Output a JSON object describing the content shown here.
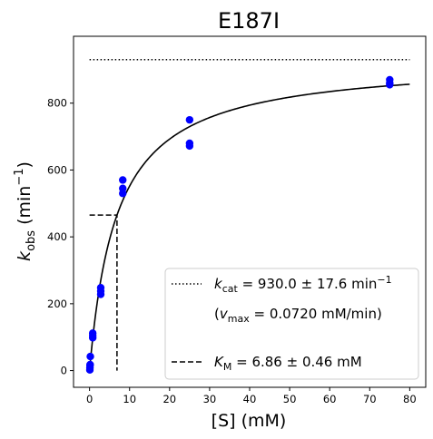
{
  "chart_data": {
    "type": "scatter",
    "title": "E187I",
    "xlabel": "[S] (mM)",
    "ylabel": "k_obs (min⁻¹)",
    "xlim": [
      -4,
      84
    ],
    "ylim": [
      -50,
      1000
    ],
    "xticks": [
      0,
      10,
      20,
      30,
      40,
      50,
      60,
      70,
      80
    ],
    "yticks": [
      0,
      200,
      400,
      600,
      800
    ],
    "grid": false,
    "legend_position": "lower-right",
    "series": [
      {
        "kind": "points",
        "color": "#0000ff",
        "points": [
          [
            0.08,
            2
          ],
          [
            0.1,
            8
          ],
          [
            0.12,
            15
          ],
          [
            0.15,
            18
          ],
          [
            0.2,
            42
          ],
          [
            0.8,
            98
          ],
          [
            0.8,
            105
          ],
          [
            0.8,
            112
          ],
          [
            2.8,
            228
          ],
          [
            2.8,
            238
          ],
          [
            2.8,
            248
          ],
          [
            8.3,
            530
          ],
          [
            8.3,
            545
          ],
          [
            8.3,
            570
          ],
          [
            25,
            672
          ],
          [
            25,
            680
          ],
          [
            25,
            750
          ],
          [
            75,
            855
          ],
          [
            75,
            860
          ],
          [
            75,
            870
          ]
        ]
      },
      {
        "kind": "fit",
        "color": "#000000",
        "equation": "kcat*S/(KM+S)",
        "kcat": 930.0,
        "KM": 6.86,
        "x_start": 0,
        "x_end": 80
      },
      {
        "kind": "hline",
        "style": "dotted",
        "y": 930,
        "x_start": 0,
        "x_end": 80
      },
      {
        "kind": "km-guide",
        "style": "dashed",
        "x": 6.86,
        "y": 465,
        "x_start": 0
      }
    ],
    "legend": [
      {
        "style": "dotted",
        "symbol": "k",
        "sub": "cat",
        "text": " = 930.0 ± 17.6 min",
        "sup": "−1"
      },
      {
        "style": "none",
        "prefix": "(",
        "symbol": "v",
        "sub": "max",
        "text": " = 0.0720 mM/min)"
      },
      {
        "style": "dashed",
        "symbol": "K",
        "sub": "M",
        "text": " = 6.86 ± 0.46 mM"
      }
    ]
  }
}
